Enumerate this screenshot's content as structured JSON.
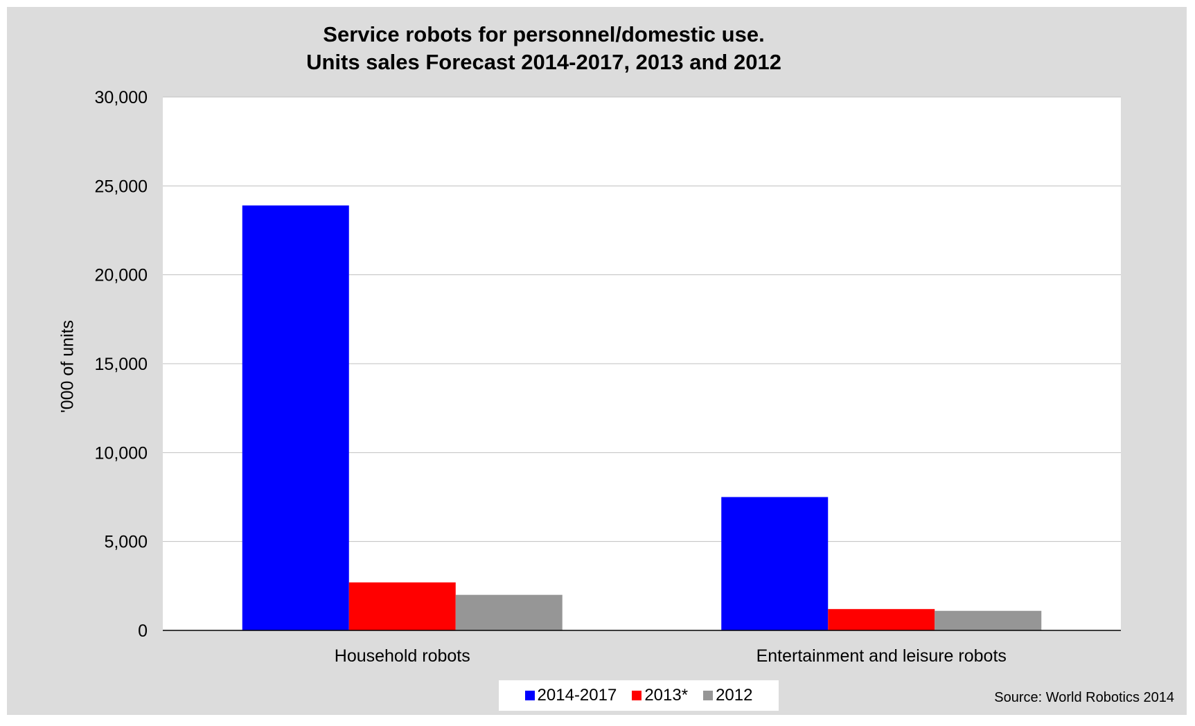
{
  "chart_data": {
    "type": "bar",
    "title_lines": [
      "Service robots for personnel/domestic use.",
      "Units sales Forecast 2014-2017, 2013 and 2012"
    ],
    "ylabel": "'000 of units",
    "xlabel": "",
    "ylim": [
      0,
      30000
    ],
    "yticks": [
      0,
      5000,
      10000,
      15000,
      20000,
      25000,
      30000
    ],
    "ytick_labels": [
      "0",
      "5,000",
      "10,000",
      "15,000",
      "20,000",
      "25,000",
      "30,000"
    ],
    "categories": [
      "Household robots",
      "Entertainment and leisure robots"
    ],
    "series": [
      {
        "name": "2014-2017",
        "color": "#0000ff",
        "values": [
          23900,
          7500
        ]
      },
      {
        "name": "2013*",
        "color": "#ff0000",
        "values": [
          2700,
          1200
        ]
      },
      {
        "name": "2012",
        "color": "#969696",
        "values": [
          2000,
          1100
        ]
      }
    ],
    "grid": true,
    "legend": "bottom-center",
    "source": "Source: World Robotics 2014"
  }
}
